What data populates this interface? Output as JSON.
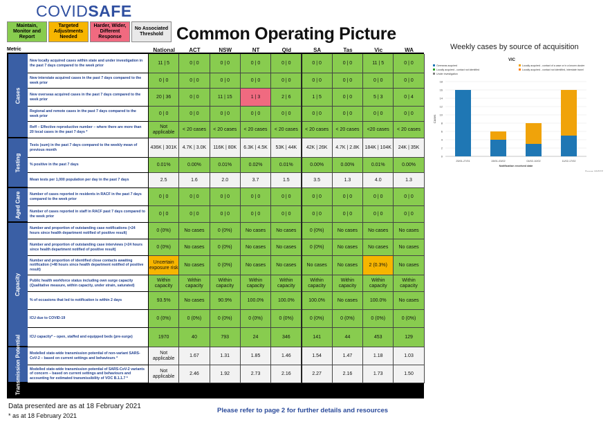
{
  "header": {
    "logo_text": "COVID",
    "logo_bold": "SAFE",
    "title": "Common Operating Picture",
    "legend": [
      {
        "label": "Maintain, Monitor and Report",
        "color": "#88cc4f"
      },
      {
        "label": "Targeted Adjustments Needed",
        "color": "#f7b500"
      },
      {
        "label": "Harder, Wider, Different Response",
        "color": "#f06a80"
      },
      {
        "label": "No Associated Threshold",
        "color": "#e9e9e9"
      }
    ]
  },
  "table": {
    "metric_header": "Metric",
    "columns": [
      "National",
      "ACT",
      "NSW",
      "NT",
      "Qld",
      "SA",
      "Tas",
      "Vic",
      "WA"
    ],
    "groups": [
      {
        "label": "Cases",
        "rows": [
          {
            "metric": "New locally acquired cases within state and under investigation in the past 7 days compared to the week prior",
            "values": [
              "11 | 5",
              "0 | 0",
              "0 | 0",
              "0 | 0",
              "0 | 0",
              "0 | 0",
              "0 | 0",
              "11 | 5",
              "0 | 0"
            ],
            "colors": [
              "g",
              "g",
              "g",
              "g",
              "g",
              "g",
              "g",
              "g",
              "g"
            ]
          },
          {
            "metric": "New interstate acquired cases in the past 7 days compared to the week prior",
            "values": [
              "0 | 0",
              "0 | 0",
              "0 | 0",
              "0 | 0",
              "0 | 0",
              "0 | 0",
              "0 | 0",
              "0 | 0",
              "0 | 0"
            ],
            "colors": [
              "g",
              "g",
              "g",
              "g",
              "g",
              "g",
              "g",
              "g",
              "g"
            ]
          },
          {
            "metric": "New overseas acquired cases in the past 7 days compared to the week prior",
            "values": [
              "20 | 36",
              "0 | 0",
              "11 | 15",
              "1 | 3",
              "2 | 6",
              "1 | 5",
              "0 | 0",
              "5 | 3",
              "0 | 4"
            ],
            "colors": [
              "g",
              "g",
              "g",
              "r",
              "g",
              "g",
              "g",
              "g",
              "g"
            ]
          },
          {
            "metric": "Regional and remote cases in the past 7 days compared to the week prior",
            "values": [
              "0 | 0",
              "0 | 0",
              "0 | 0",
              "0 | 0",
              "0 | 0",
              "0 | 0",
              "0 | 0",
              "0 | 0",
              "0 | 0"
            ],
            "colors": [
              "g",
              "g",
              "g",
              "g",
              "g",
              "g",
              "g",
              "g",
              "g"
            ]
          },
          {
            "metric": "Reff – Effective reproductive number – where there are more than 20 local cases in the past 7 days *",
            "values": [
              "Not applicable",
              "< 20 cases",
              "< 20 cases",
              "< 20 cases",
              "< 20 cases",
              "< 20 cases",
              "< 20 cases",
              "<20 cases",
              "< 20 cases"
            ],
            "colors": [
              "g",
              "g",
              "g",
              "g",
              "g",
              "g",
              "g",
              "g",
              "g"
            ]
          }
        ]
      },
      {
        "label": "Testing",
        "rows": [
          {
            "metric": "Tests (sum) in the past 7 days compared to the weekly mean of previous month",
            "values": [
              "436K | 301K",
              "4.7K | 3.0K",
              "116K | 80K",
              "6.3K | 4.5K",
              "53K | 44K",
              "42K | 26K",
              "4.7K | 2.8K",
              "184K | 104K",
              "24K | 35K"
            ],
            "colors": [
              "w",
              "w",
              "w",
              "w",
              "w",
              "w",
              "w",
              "w",
              "w"
            ]
          },
          {
            "metric": "% positive in the past 7 days",
            "values": [
              "0.01%",
              "0.00%",
              "0.01%",
              "0.02%",
              "0.01%",
              "0.00%",
              "0.00%",
              "0.01%",
              "0.00%"
            ],
            "colors": [
              "g",
              "g",
              "g",
              "g",
              "g",
              "g",
              "g",
              "g",
              "g"
            ]
          },
          {
            "metric": "Mean tests per 1,000 population per day in the past 7 days",
            "values": [
              "2.5",
              "1.6",
              "2.0",
              "3.7",
              "1.5",
              "3.5",
              "1.3",
              "4.0",
              "1.3"
            ],
            "colors": [
              "w",
              "w",
              "w",
              "w",
              "w",
              "w",
              "w",
              "w",
              "w"
            ]
          }
        ]
      },
      {
        "label": "Aged Care",
        "rows": [
          {
            "metric": "Number of cases reported in residents in RACF in the past 7 days compared to the week prior",
            "values": [
              "0 | 0",
              "0 | 0",
              "0 | 0",
              "0 | 0",
              "0 | 0",
              "0 | 0",
              "0 | 0",
              "0 | 0",
              "0 | 0"
            ],
            "colors": [
              "g",
              "g",
              "g",
              "g",
              "g",
              "g",
              "g",
              "g",
              "g"
            ]
          },
          {
            "metric": "Number of cases reported in staff in RACF past 7 days compared to the week prior",
            "values": [
              "0 | 0",
              "0 | 0",
              "0 | 0",
              "0 | 0",
              "0 | 0",
              "0 | 0",
              "0 | 0",
              "0 | 0",
              "0 | 0"
            ],
            "colors": [
              "g",
              "g",
              "g",
              "g",
              "g",
              "g",
              "g",
              "g",
              "g"
            ]
          }
        ]
      },
      {
        "label": "Capacity",
        "rows": [
          {
            "metric": "Number and proportion of outstanding case notifications (>24 hours since health department notified of positive result)",
            "values": [
              "0 (0%)",
              "No cases",
              "0 (0%)",
              "No cases",
              "No cases",
              "0 (0%)",
              "No cases",
              "No cases",
              "No cases"
            ],
            "colors": [
              "g",
              "g",
              "g",
              "g",
              "g",
              "g",
              "g",
              "g",
              "g"
            ]
          },
          {
            "metric": "Number and proportion of outstanding case interviews (>24 hours since health department notified of positive result)",
            "values": [
              "0 (0%)",
              "No cases",
              "0 (0%)",
              "No cases",
              "No cases",
              "0 (0%)",
              "No cases",
              "No cases",
              "No cases"
            ],
            "colors": [
              "g",
              "g",
              "g",
              "g",
              "g",
              "g",
              "g",
              "g",
              "g"
            ]
          },
          {
            "metric": "Number and proportion of identified close contacts awaiting notification (>48 hours since health department notified of positive result)",
            "values": [
              "Uncertain exposure risk",
              "No cases",
              "0 (0%)",
              "No cases",
              "No cases",
              "No cases",
              "No cases",
              "2 (0.3%)",
              "No cases"
            ],
            "colors": [
              "o",
              "g",
              "g",
              "g",
              "g",
              "g",
              "g",
              "o",
              "g"
            ]
          },
          {
            "metric": "Public health workforce status including own surge capacity (Qualitative measure, within capacity, under strain, saturated)",
            "values": [
              "Within capacity",
              "Within capacity",
              "Within capacity",
              "Within capacity",
              "Within capacity",
              "Within capacity",
              "Within capacity",
              "Within capacity",
              "Within capacity"
            ],
            "colors": [
              "g",
              "g",
              "g",
              "g",
              "g",
              "g",
              "g",
              "g",
              "g"
            ]
          },
          {
            "metric": "% of occasions that led to notification is within 2 days",
            "values": [
              "93.5%",
              "No cases",
              "90.9%",
              "100.0%",
              "100.0%",
              "100.0%",
              "No cases",
              "100.0%",
              "No cases"
            ],
            "colors": [
              "g",
              "g",
              "g",
              "g",
              "g",
              "g",
              "g",
              "g",
              "g"
            ]
          },
          {
            "metric": "ICU due to COVID-19",
            "values": [
              "0 (0%)",
              "0 (0%)",
              "0 (0%)",
              "0 (0%)",
              "0 (0%)",
              "0 (0%)",
              "0 (0%)",
              "0 (0%)",
              "0 (0%)"
            ],
            "colors": [
              "g",
              "g",
              "g",
              "g",
              "g",
              "g",
              "g",
              "g",
              "g"
            ]
          },
          {
            "metric": "ICU capacity* – open, staffed and equipped beds (pre-surge)",
            "values": [
              "1970",
              "40",
              "793",
              "24",
              "346",
              "141",
              "44",
              "453",
              "129"
            ],
            "colors": [
              "g",
              "g",
              "g",
              "g",
              "g",
              "g",
              "g",
              "g",
              "g"
            ]
          }
        ]
      },
      {
        "label": "Transmission Potential",
        "rows": [
          {
            "metric": "Modelled state-wide transmission potential of non-variant SARS-CoV-2 – based on current settings and behaviours *",
            "values": [
              "Not applicable",
              "1.67",
              "1.31",
              "1.85",
              "1.46",
              "1.54",
              "1.47",
              "1.18",
              "1.03"
            ],
            "colors": [
              "w",
              "w",
              "w",
              "w",
              "w",
              "w",
              "w",
              "w",
              "w"
            ]
          },
          {
            "metric": "Modelled state-wide transmission potential of SARS-CoV-2 variants of concern – based on current settings and behaviours and accounting for estimated transmissibility of VOC B.1.1.7 *",
            "values": [
              "Not applicable",
              "2.46",
              "1.92",
              "2.73",
              "2.16",
              "2.27",
              "2.16",
              "1.73",
              "1.50"
            ],
            "colors": [
              "w",
              "w",
              "w",
              "w",
              "w",
              "w",
              "w",
              "w",
              "w"
            ]
          }
        ]
      }
    ]
  },
  "chart_data": {
    "type": "bar",
    "title": "Weekly cases by source of acquisition",
    "subtitle": "VIC",
    "categories": [
      "25/01-27/01",
      "28/01-03/02",
      "04/02-10/02",
      "11/02-17/02"
    ],
    "series": [
      {
        "name": "Overseas acquired",
        "color": "#1f77b4",
        "values": [
          16,
          4,
          3,
          5
        ]
      },
      {
        "name": "Locally acquired - contact of a case or in a known cluster",
        "color": "#f0a30a",
        "values": [
          0,
          2,
          5,
          11
        ]
      },
      {
        "name": "Locally acquired - contact not identified",
        "color": "#2ca02c",
        "values": [
          0,
          0,
          0,
          0
        ]
      },
      {
        "name": "Locally acquired - contact not identified, interstate travel",
        "color": "#ff7f0e",
        "values": [
          0,
          0,
          0,
          0
        ]
      },
      {
        "name": "Under investigation",
        "color": "#7f7f7f",
        "values": [
          0,
          0,
          0,
          0
        ]
      }
    ],
    "ylabel": "Cases",
    "xlabel": "Notification received date",
    "ylim": [
      0,
      18
    ],
    "yticks": [
      0,
      2,
      4,
      6,
      8,
      10,
      12,
      14,
      16,
      18
    ],
    "source": "Source: NNDSS",
    "stacked": true,
    "legend_position": "top"
  },
  "footer": {
    "date": "Data presented are as at 18 February 2021",
    "note": "* as at 18 February 2021",
    "refer": "Please refer to page 2 for further details and resources"
  }
}
